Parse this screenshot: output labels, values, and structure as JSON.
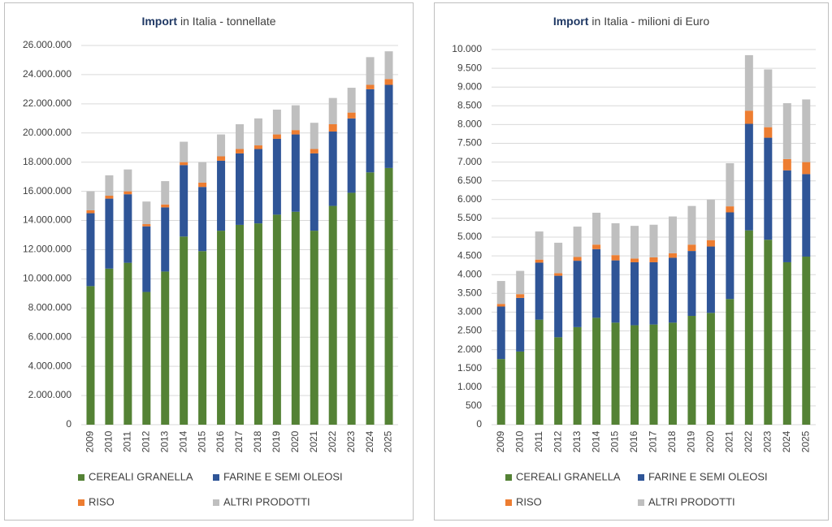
{
  "chart_data": [
    {
      "type": "bar",
      "stacked": true,
      "title_emphasis": "Import",
      "title": "in Italia - tonnellate",
      "categories": [
        "2009",
        "2010",
        "2011",
        "2012",
        "2013",
        "2014",
        "2015",
        "2016",
        "2017",
        "2018",
        "2019",
        "2020",
        "2021",
        "2022",
        "2023",
        "2024",
        "2025"
      ],
      "series": [
        {
          "name": "CEREALI GRANELLA",
          "color": "#548235",
          "values": [
            9500000,
            10700000,
            11100000,
            9100000,
            10500000,
            12900000,
            11900000,
            13300000,
            13700000,
            13800000,
            14400000,
            14600000,
            13300000,
            15000000,
            15900000,
            17300000,
            17600000
          ]
        },
        {
          "name": "FARINE E SEMI OLEOSI",
          "color": "#2f5597",
          "values": [
            5000000,
            4800000,
            4700000,
            4500000,
            4400000,
            4900000,
            4400000,
            4800000,
            4900000,
            5100000,
            5200000,
            5300000,
            5300000,
            5100000,
            5100000,
            5700000,
            5700000
          ]
        },
        {
          "name": "RISO",
          "color": "#ed7d31",
          "values": [
            200000,
            200000,
            200000,
            150000,
            200000,
            200000,
            300000,
            300000,
            300000,
            250000,
            300000,
            300000,
            300000,
            500000,
            400000,
            300000,
            400000
          ]
        },
        {
          "name": "ALTRI PRODOTTI",
          "color": "#bfbfbf",
          "values": [
            1300000,
            1400000,
            1500000,
            1550000,
            1600000,
            1400000,
            1400000,
            1500000,
            1700000,
            1850000,
            1700000,
            1700000,
            1800000,
            1800000,
            1700000,
            1900000,
            1900000
          ]
        }
      ],
      "ylim": [
        0,
        26000000
      ],
      "yticks": [
        0,
        {
          "value": 2000000,
          "label": "2.000.000"
        },
        {
          "value": 4000000,
          "label": "4.000.000"
        },
        {
          "value": 6000000,
          "label": "6.000.000"
        },
        {
          "value": 8000000,
          "label": "8.000.000"
        },
        {
          "value": 10000000,
          "label": "10.000.000"
        },
        {
          "value": 12000000,
          "label": "12.000.000"
        },
        {
          "value": 14000000,
          "label": "14.000.000"
        },
        {
          "value": 16000000,
          "label": "16.000.000"
        },
        {
          "value": 18000000,
          "label": "18.000.000"
        },
        {
          "value": 20000000,
          "label": "20.000.000"
        },
        {
          "value": 22000000,
          "label": "22.000.000"
        },
        {
          "value": 24000000,
          "label": "24.000.000"
        },
        {
          "value": 26000000,
          "label": "26.000.000"
        }
      ],
      "grid": true
    },
    {
      "type": "bar",
      "stacked": true,
      "title_emphasis": "Import",
      "title": "in Italia - milioni di Euro",
      "categories": [
        "2009",
        "2010",
        "2011",
        "2012",
        "2013",
        "2014",
        "2015",
        "2016",
        "2017",
        "2018",
        "2019",
        "2020",
        "2021",
        "2022",
        "2023",
        "2024",
        "2025"
      ],
      "series": [
        {
          "name": "CEREALI GRANELLA",
          "color": "#548235",
          "values": [
            1750,
            1950,
            2800,
            2330,
            2600,
            2850,
            2720,
            2650,
            2670,
            2720,
            2900,
            2980,
            3350,
            5180,
            4930,
            4330,
            4480
          ]
        },
        {
          "name": "FARINE E SEMI OLEOSI",
          "color": "#2f5597",
          "values": [
            1400,
            1430,
            1520,
            1640,
            1770,
            1830,
            1660,
            1680,
            1660,
            1730,
            1730,
            1770,
            2310,
            2840,
            2720,
            2450,
            2200
          ]
        },
        {
          "name": "RISO",
          "color": "#ed7d31",
          "values": [
            70,
            100,
            80,
            70,
            100,
            120,
            140,
            100,
            130,
            120,
            170,
            170,
            160,
            350,
            280,
            300,
            320
          ]
        },
        {
          "name": "ALTRI PRODOTTI",
          "color": "#bfbfbf",
          "values": [
            610,
            620,
            750,
            810,
            810,
            850,
            850,
            870,
            870,
            980,
            1030,
            1080,
            1150,
            1480,
            1540,
            1490,
            1670
          ]
        }
      ],
      "ylim": [
        0,
        10000
      ],
      "yticks": [
        0,
        500,
        {
          "value": 1000,
          "label": "1.000"
        },
        {
          "value": 1500,
          "label": "1.500"
        },
        {
          "value": 2000,
          "label": "2.000"
        },
        {
          "value": 2500,
          "label": "2.500"
        },
        {
          "value": 3000,
          "label": "3.000"
        },
        {
          "value": 3500,
          "label": "3.500"
        },
        {
          "value": 4000,
          "label": "4.000"
        },
        {
          "value": 4500,
          "label": "4.500"
        },
        {
          "value": 5000,
          "label": "5.000"
        },
        {
          "value": 5500,
          "label": "5.500"
        },
        {
          "value": 6000,
          "label": "6.000"
        },
        {
          "value": 6500,
          "label": "6.500"
        },
        {
          "value": 7000,
          "label": "7.000"
        },
        {
          "value": 7500,
          "label": "7.500"
        },
        {
          "value": 8000,
          "label": "8.000"
        },
        {
          "value": 8500,
          "label": "8.500"
        },
        {
          "value": 9000,
          "label": "9.000"
        },
        {
          "value": 9500,
          "label": "9.500"
        },
        {
          "value": 10000,
          "label": "10.000"
        }
      ],
      "grid": true
    }
  ]
}
